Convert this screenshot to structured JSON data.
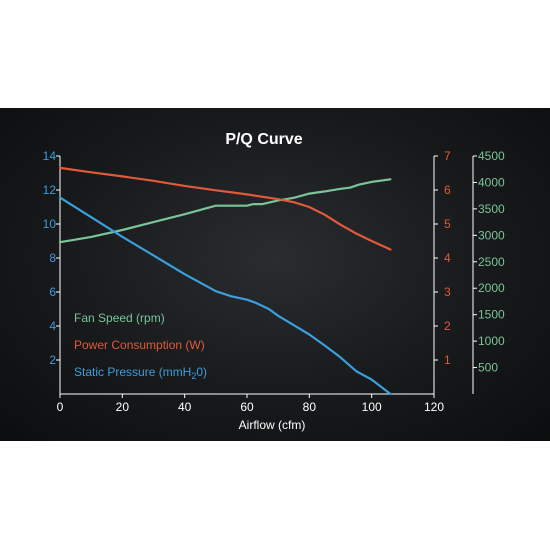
{
  "chart_data": {
    "type": "line",
    "title": "P/Q Curve",
    "xlabel": "Airflow (cfm)",
    "xlim": [
      0,
      120
    ],
    "x_ticks": [
      "0",
      "20",
      "40",
      "60",
      "80",
      "100",
      "120"
    ],
    "axes": {
      "left": {
        "ylim": [
          0,
          14
        ],
        "ticks": [
          "2",
          "4",
          "6",
          "8",
          "10",
          "12",
          "14"
        ],
        "color": "#3a9fdc"
      },
      "right1": {
        "ylim": [
          0,
          7
        ],
        "ticks": [
          "1",
          "2",
          "3",
          "4",
          "5",
          "6",
          "7"
        ],
        "color": "#e05a3a"
      },
      "right2": {
        "ylim": [
          0,
          4500
        ],
        "ticks": [
          "500",
          "1000",
          "1500",
          "2000",
          "2500",
          "3000",
          "3500",
          "4000",
          "4500"
        ],
        "color": "#7bc49a"
      }
    },
    "legend": {
      "position": "bottom-left",
      "items": [
        {
          "label": "Fan Speed (rpm)",
          "color": "#7bc49a"
        },
        {
          "label": "Power Consumption (W)",
          "color": "#e05a3a"
        },
        {
          "label_main": "Static Pressure (mmH",
          "label_sub": "2",
          "label_tail": "0)",
          "color": "#3a9fdc"
        }
      ]
    },
    "series": [
      {
        "axis": "right2",
        "color": "#7bc49a",
        "x": [
          0,
          10,
          20,
          30,
          40,
          50,
          55,
          60,
          62,
          65,
          70,
          75,
          80,
          85,
          90,
          93,
          96,
          100,
          106
        ],
        "y": [
          2870,
          2970,
          3100,
          3250,
          3400,
          3560,
          3560,
          3560,
          3590,
          3590,
          3660,
          3710,
          3790,
          3830,
          3880,
          3900,
          3960,
          4010,
          4060
        ]
      },
      {
        "axis": "right1",
        "color": "#e05a3a",
        "x": [
          0,
          10,
          20,
          30,
          40,
          50,
          60,
          70,
          75,
          80,
          85,
          90,
          95,
          100,
          106
        ],
        "y": [
          6.65,
          6.52,
          6.4,
          6.27,
          6.12,
          5.99,
          5.87,
          5.73,
          5.64,
          5.5,
          5.27,
          4.98,
          4.72,
          4.5,
          4.25
        ]
      },
      {
        "axis": "left",
        "color": "#3a9fdc",
        "x": [
          0,
          10,
          20,
          30,
          40,
          50,
          55,
          60,
          63,
          67,
          70,
          75,
          80,
          85,
          90,
          95,
          100,
          106
        ],
        "y": [
          11.55,
          10.4,
          9.25,
          8.15,
          7.05,
          6.05,
          5.75,
          5.55,
          5.35,
          5.0,
          4.6,
          4.05,
          3.5,
          2.85,
          2.15,
          1.35,
          0.85,
          0.0
        ]
      }
    ]
  }
}
